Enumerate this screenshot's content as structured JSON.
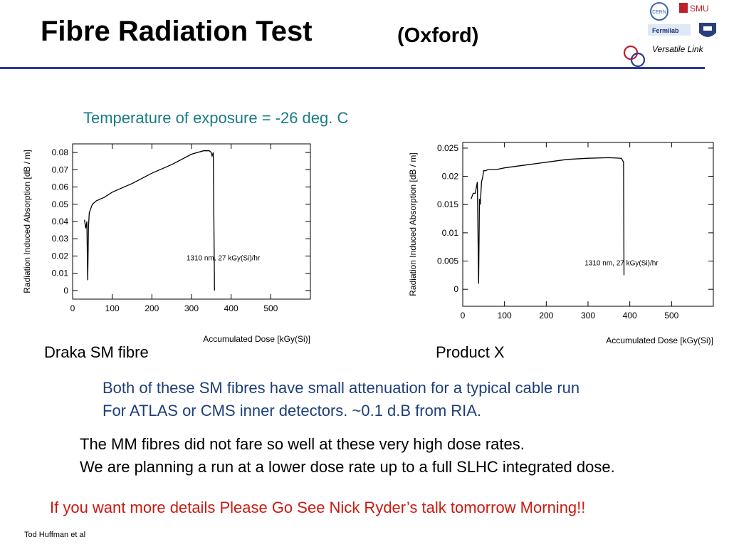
{
  "header": {
    "title": "Fibre Radiation Test",
    "subtitle": "(Oxford)",
    "logo_text": {
      "cern": "CERN",
      "smu": "SMU",
      "fermilab": "Fermilab"
    },
    "versatile_link": "Versatile Link",
    "accent": "#2b3b8f"
  },
  "temperature": "Temperature of exposure = -26 deg. C",
  "captions": {
    "left": "Draka SM fibre",
    "right": "Product X"
  },
  "body": {
    "p1": [
      "Both of these SM fibres have small attenuation for a typical cable run",
      "For ATLAS or CMS inner detectors. ~0.1 d.B from RIA."
    ],
    "p2": [
      "The MM fibres did not fare so well at these very high dose rates.",
      "We are planning a run at a lower dose rate up to a full SLHC integrated dose."
    ],
    "note": "If you want more details Please Go See Nick Ryder’s talk tomorrow Morning!!"
  },
  "footer": "Tod Huffman et al",
  "chart_data": [
    {
      "type": "line",
      "xlabel": "Accumulated Dose [kGy(Si)]",
      "ylabel": "Radiation Induced Absorption [dB / m]",
      "annotation": "1310 nm, 27 kGy(Si)/hr",
      "xlim": [
        0,
        600
      ],
      "ylim": [
        -0.005,
        0.085
      ],
      "xticks": [
        "0",
        "100",
        "200",
        "300",
        "400",
        "500"
      ],
      "yticks": [
        "0",
        "0.01",
        "0.02",
        "0.03",
        "0.04",
        "0.05",
        "0.06",
        "0.07",
        "0.08"
      ],
      "xtick_values": [
        0,
        100,
        200,
        300,
        400,
        500
      ],
      "ytick_values": [
        0,
        0.01,
        0.02,
        0.03,
        0.04,
        0.05,
        0.06,
        0.07,
        0.08
      ],
      "x": [
        30,
        33,
        36,
        38,
        40,
        42,
        45,
        50,
        60,
        80,
        100,
        150,
        200,
        250,
        300,
        330,
        345,
        350,
        352,
        355,
        358
      ],
      "y": [
        0.041,
        0.036,
        0.04,
        0.006,
        0.037,
        0.045,
        0.047,
        0.05,
        0.052,
        0.054,
        0.057,
        0.062,
        0.068,
        0.073,
        0.079,
        0.081,
        0.081,
        0.08,
        0.078,
        0.08,
        0.0
      ],
      "color": "#000000"
    },
    {
      "type": "line",
      "xlabel": "Accumulated Dose [kGy(Si)]",
      "ylabel": "Radiation Induced Absorption [dB / m]",
      "annotation": "1310 nm, 27 kGy(Si)/hr",
      "xlim": [
        0,
        600
      ],
      "ylim": [
        -0.003,
        0.026
      ],
      "xticks": [
        "0",
        "100",
        "200",
        "300",
        "400",
        "500"
      ],
      "yticks": [
        "0",
        "0.005",
        "0.01",
        "0.015",
        "0.02",
        "0.025"
      ],
      "xtick_values": [
        0,
        100,
        200,
        300,
        400,
        500
      ],
      "ytick_values": [
        0,
        0.005,
        0.01,
        0.015,
        0.02,
        0.025
      ],
      "x": [
        20,
        25,
        30,
        35,
        38,
        40,
        42,
        45,
        48,
        50,
        55,
        60,
        80,
        100,
        150,
        200,
        250,
        300,
        350,
        380,
        385,
        386
      ],
      "y": [
        0.016,
        0.017,
        0.017,
        0.019,
        0.001,
        0.016,
        0.015,
        0.019,
        0.02,
        0.021,
        0.021,
        0.0212,
        0.0212,
        0.0215,
        0.022,
        0.0225,
        0.023,
        0.0232,
        0.0233,
        0.0232,
        0.0225,
        0.0025
      ],
      "color": "#000000"
    }
  ]
}
